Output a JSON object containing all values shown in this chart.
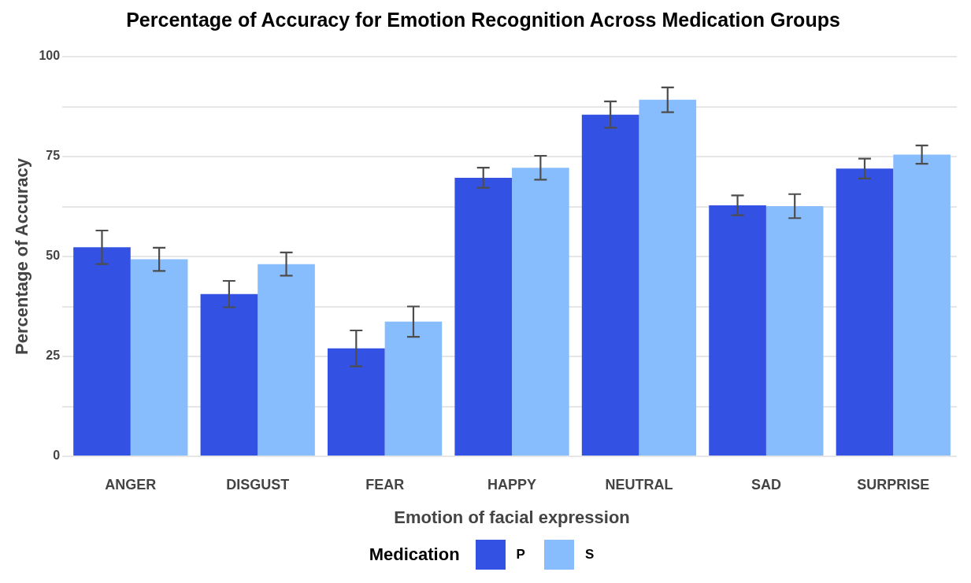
{
  "chart_data": {
    "type": "bar",
    "title": "Percentage of Accuracy for Emotion Recognition Across Medication Groups",
    "xlabel": "Emotion of facial expression",
    "ylabel": "Percentage of Accuracy",
    "legend_title": "Medication",
    "categories": [
      "ANGER",
      "DISGUST",
      "FEAR",
      "HAPPY",
      "NEUTRAL",
      "SAD",
      "SURPRISE"
    ],
    "series": [
      {
        "name": "P",
        "color": "#3352e3",
        "values": [
          52.3,
          40.6,
          27.0,
          69.7,
          85.5,
          62.8,
          72.0
        ],
        "errors": [
          4.2,
          3.3,
          4.5,
          2.5,
          3.3,
          2.5,
          2.5
        ]
      },
      {
        "name": "S",
        "color": "#88bdfd",
        "values": [
          49.3,
          48.1,
          33.7,
          72.2,
          89.2,
          62.6,
          75.5
        ],
        "errors": [
          2.9,
          2.9,
          3.8,
          3.0,
          3.1,
          3.0,
          2.3
        ]
      }
    ],
    "ylim": [
      0,
      100
    ],
    "yticks": [
      0,
      {
        "value": 12.5,
        "label": null
      },
      25,
      {
        "value": 37.5,
        "label": null
      },
      50,
      {
        "value": 62.5,
        "label": null
      },
      75,
      {
        "value": 87.5,
        "label": null
      },
      100
    ],
    "grid": "y",
    "legend": "bottom"
  }
}
